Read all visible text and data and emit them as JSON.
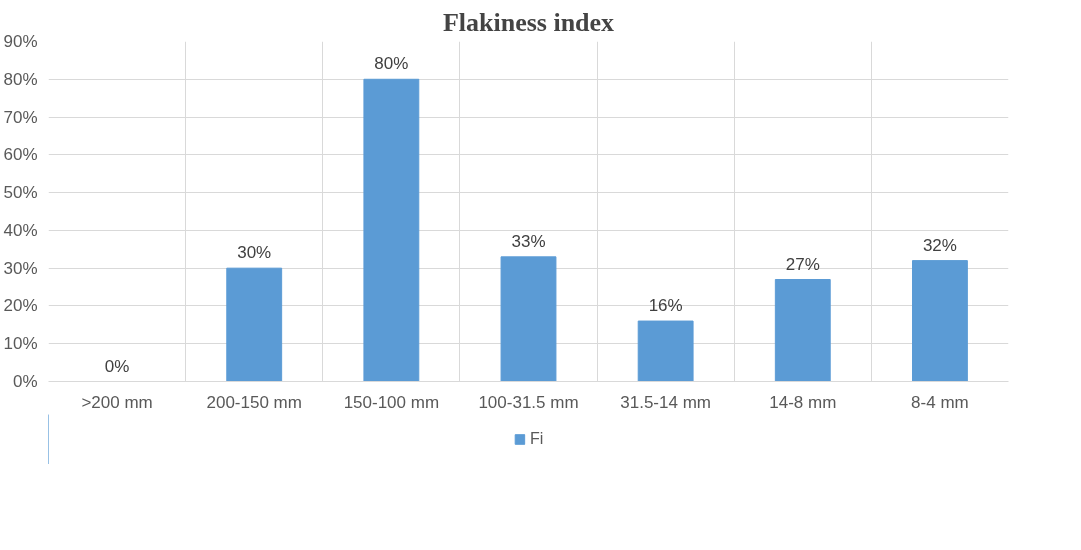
{
  "chart_data": {
    "type": "bar",
    "title": "Flakiness index",
    "categories": [
      ">200 mm",
      "200-150 mm",
      "150-100 mm",
      "100-31.5 mm",
      "31.5-14 mm",
      "14-8 mm",
      "8-4 mm"
    ],
    "series": [
      {
        "name": "Fi",
        "color": "#5b9bd5",
        "values": [
          0,
          30,
          80,
          33,
          16,
          27,
          32
        ],
        "value_labels": [
          "0%",
          "30%",
          "80%",
          "33%",
          "16%",
          "27%",
          "32%"
        ]
      }
    ],
    "ylim": [
      0,
      90
    ],
    "yticks": [
      {
        "value": 0,
        "label": "0%"
      },
      {
        "value": 10,
        "label": "10%"
      },
      {
        "value": 20,
        "label": "20%"
      },
      {
        "value": 30,
        "label": "30%"
      },
      {
        "value": 40,
        "label": "40%"
      },
      {
        "value": 50,
        "label": "50%"
      },
      {
        "value": 60,
        "label": "60%"
      },
      {
        "value": 70,
        "label": "70%"
      },
      {
        "value": 80,
        "label": "80%"
      },
      {
        "value": 90,
        "label": "90%"
      }
    ],
    "grid": true,
    "legend": "bottom"
  }
}
